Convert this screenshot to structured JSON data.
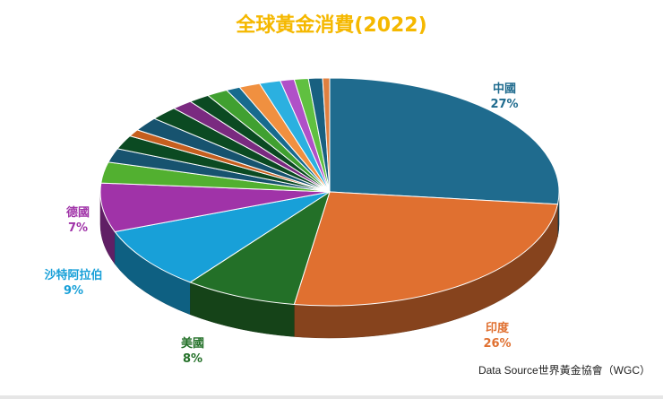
{
  "title": "全球黃金消費(2022)",
  "source_note": "Data Source世界黃金協會（WGC）",
  "colors": {
    "title": "#f5b800"
  },
  "chart_data": {
    "type": "pie",
    "title": "全球黃金消費(2022)",
    "style": "3d-exploded",
    "slices": [
      {
        "label": "中國",
        "value": 27,
        "color": "#1f6b8e",
        "shown_label": "中國",
        "shown_value": "27%"
      },
      {
        "label": "印度",
        "value": 26,
        "color": "#e07030",
        "shown_label": "印度",
        "shown_value": "26%"
      },
      {
        "label": "美國",
        "value": 8,
        "color": "#237028",
        "shown_label": "美國",
        "shown_value": "8%"
      },
      {
        "label": "沙特阿拉伯",
        "value": 9,
        "color": "#18a0d8",
        "shown_label": "沙特阿拉伯",
        "shown_value": "9%"
      },
      {
        "label": "德國",
        "value": 7,
        "color": "#a033a8",
        "shown_label": "德國",
        "shown_value": "7%"
      },
      {
        "label": "",
        "value": 3,
        "color": "#52b030"
      },
      {
        "label": "",
        "value": 2,
        "color": "#17536f"
      },
      {
        "label": "",
        "value": 2,
        "color": "#0b4a22"
      },
      {
        "label": "",
        "value": 1,
        "color": "#c65f1f"
      },
      {
        "label": "",
        "value": 2,
        "color": "#17536f"
      },
      {
        "label": "",
        "value": 2,
        "color": "#0b4a22"
      },
      {
        "label": "",
        "value": 1.5,
        "color": "#7a2a80"
      },
      {
        "label": "",
        "value": 1.5,
        "color": "#0b4a22"
      },
      {
        "label": "",
        "value": 1.5,
        "color": "#40a030"
      },
      {
        "label": "",
        "value": 1,
        "color": "#176b8e"
      },
      {
        "label": "",
        "value": 1.5,
        "color": "#f09040"
      },
      {
        "label": "",
        "value": 1.5,
        "color": "#2bb0e0"
      },
      {
        "label": "",
        "value": 1,
        "color": "#b050c8"
      },
      {
        "label": "",
        "value": 1,
        "color": "#60c040"
      },
      {
        "label": "",
        "value": 1,
        "color": "#186080"
      },
      {
        "label": "",
        "value": 0.5,
        "color": "#e08040"
      }
    ]
  }
}
